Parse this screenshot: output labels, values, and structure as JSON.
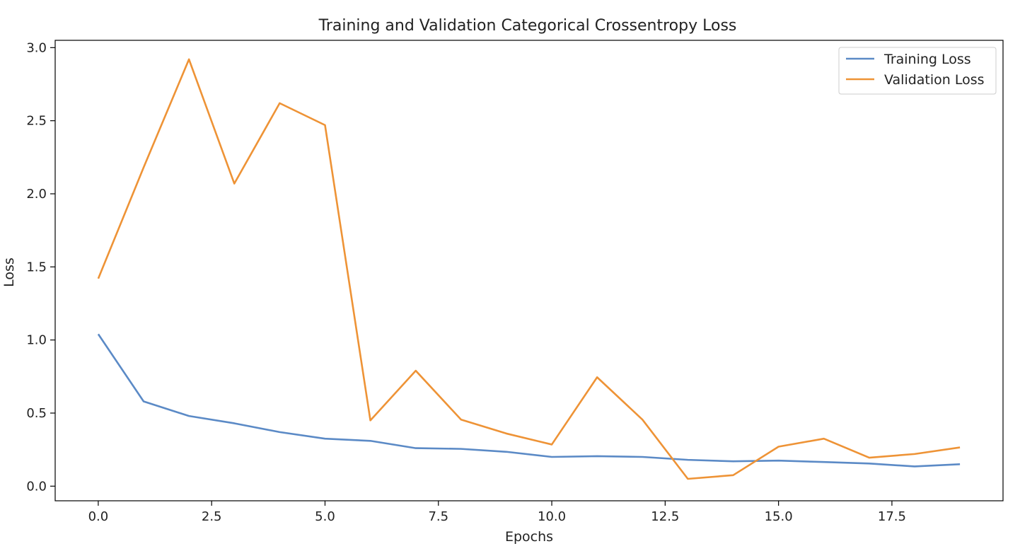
{
  "chart_data": {
    "type": "line",
    "title": "Training and Validation Categorical Crossentropy Loss",
    "xlabel": "Epochs",
    "ylabel": "Loss",
    "xlim": [
      -0.95,
      19.95
    ],
    "ylim": [
      -0.1,
      3.05
    ],
    "xticks": [
      0.0,
      2.5,
      5.0,
      7.5,
      10.0,
      12.5,
      15.0,
      17.5
    ],
    "xtick_labels": [
      "0.0",
      "2.5",
      "5.0",
      "7.5",
      "10.0",
      "12.5",
      "15.0",
      "17.5"
    ],
    "yticks": [
      0.0,
      0.5,
      1.0,
      1.5,
      2.0,
      2.5,
      3.0
    ],
    "ytick_labels": [
      "0.0",
      "0.5",
      "1.0",
      "1.5",
      "2.0",
      "2.5",
      "3.0"
    ],
    "grid": false,
    "legend_position": "top-right",
    "x": [
      0,
      1,
      2,
      3,
      4,
      5,
      6,
      7,
      8,
      9,
      10,
      11,
      12,
      13,
      14,
      15,
      16,
      17,
      18,
      19
    ],
    "series": [
      {
        "name": "Training Loss",
        "color": "#5b8ac6",
        "values": [
          1.04,
          0.58,
          0.48,
          0.43,
          0.37,
          0.325,
          0.31,
          0.26,
          0.255,
          0.235,
          0.2,
          0.205,
          0.2,
          0.18,
          0.17,
          0.175,
          0.165,
          0.155,
          0.135,
          0.15
        ]
      },
      {
        "name": "Validation Loss",
        "color": "#ee9336",
        "values": [
          1.42,
          2.18,
          2.92,
          2.07,
          2.62,
          2.47,
          0.45,
          0.79,
          0.455,
          0.36,
          0.285,
          0.745,
          0.455,
          0.05,
          0.075,
          0.27,
          0.325,
          0.195,
          0.22,
          0.265
        ]
      }
    ]
  }
}
